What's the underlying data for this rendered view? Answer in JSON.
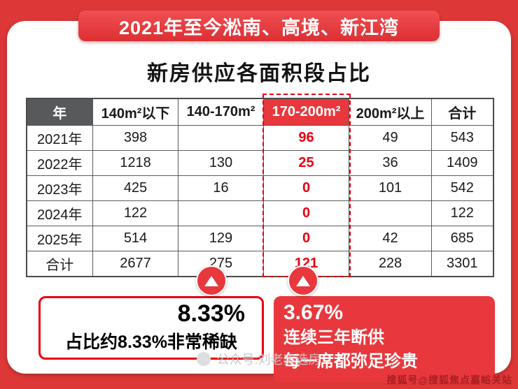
{
  "banner_title": "2021年至今淞南、高境、新江湾",
  "chart_data": {
    "type": "table",
    "title": "新房供应各面积段占比",
    "columns": [
      "年",
      "140m²以下",
      "140-170m²",
      "170-200m²",
      "200m²以上",
      "合计"
    ],
    "highlighted_column": "170-200m²",
    "rows": [
      {
        "label": "2021年",
        "values": [
          "398",
          "",
          "96",
          "49",
          "543"
        ]
      },
      {
        "label": "2022年",
        "values": [
          "1218",
          "130",
          "25",
          "36",
          "1409"
        ]
      },
      {
        "label": "2023年",
        "values": [
          "425",
          "16",
          "0",
          "101",
          "542"
        ]
      },
      {
        "label": "2024年",
        "values": [
          "122",
          "",
          "0",
          "",
          "122"
        ]
      },
      {
        "label": "2025年",
        "values": [
          "514",
          "129",
          "0",
          "42",
          "685"
        ]
      },
      {
        "label": "合计",
        "values": [
          "2677",
          "275",
          "121",
          "228",
          "3301"
        ]
      }
    ],
    "annotations": [
      "8.33% — 占比约8.33%非常稀缺",
      "3.67% — 连续三年断供 每一席都弥足珍贵"
    ]
  },
  "callout_left": {
    "pct": "8.33%",
    "line": "占比约8.33%非常稀缺"
  },
  "callout_right": {
    "pct": "3.67%",
    "line1": "连续三年断供",
    "line2": "每一席都弥足珍贵"
  },
  "watermark_center": "公众号:刘老实选房",
  "watermark_right": "搜狐号@搜狐焦点嘉峪关站",
  "colors": {
    "page_background": "#dd3737",
    "banner_red": "#e63c40",
    "highlight_red": "#e8383d",
    "value_red": "#e60012",
    "header_gray": "#58595b"
  }
}
